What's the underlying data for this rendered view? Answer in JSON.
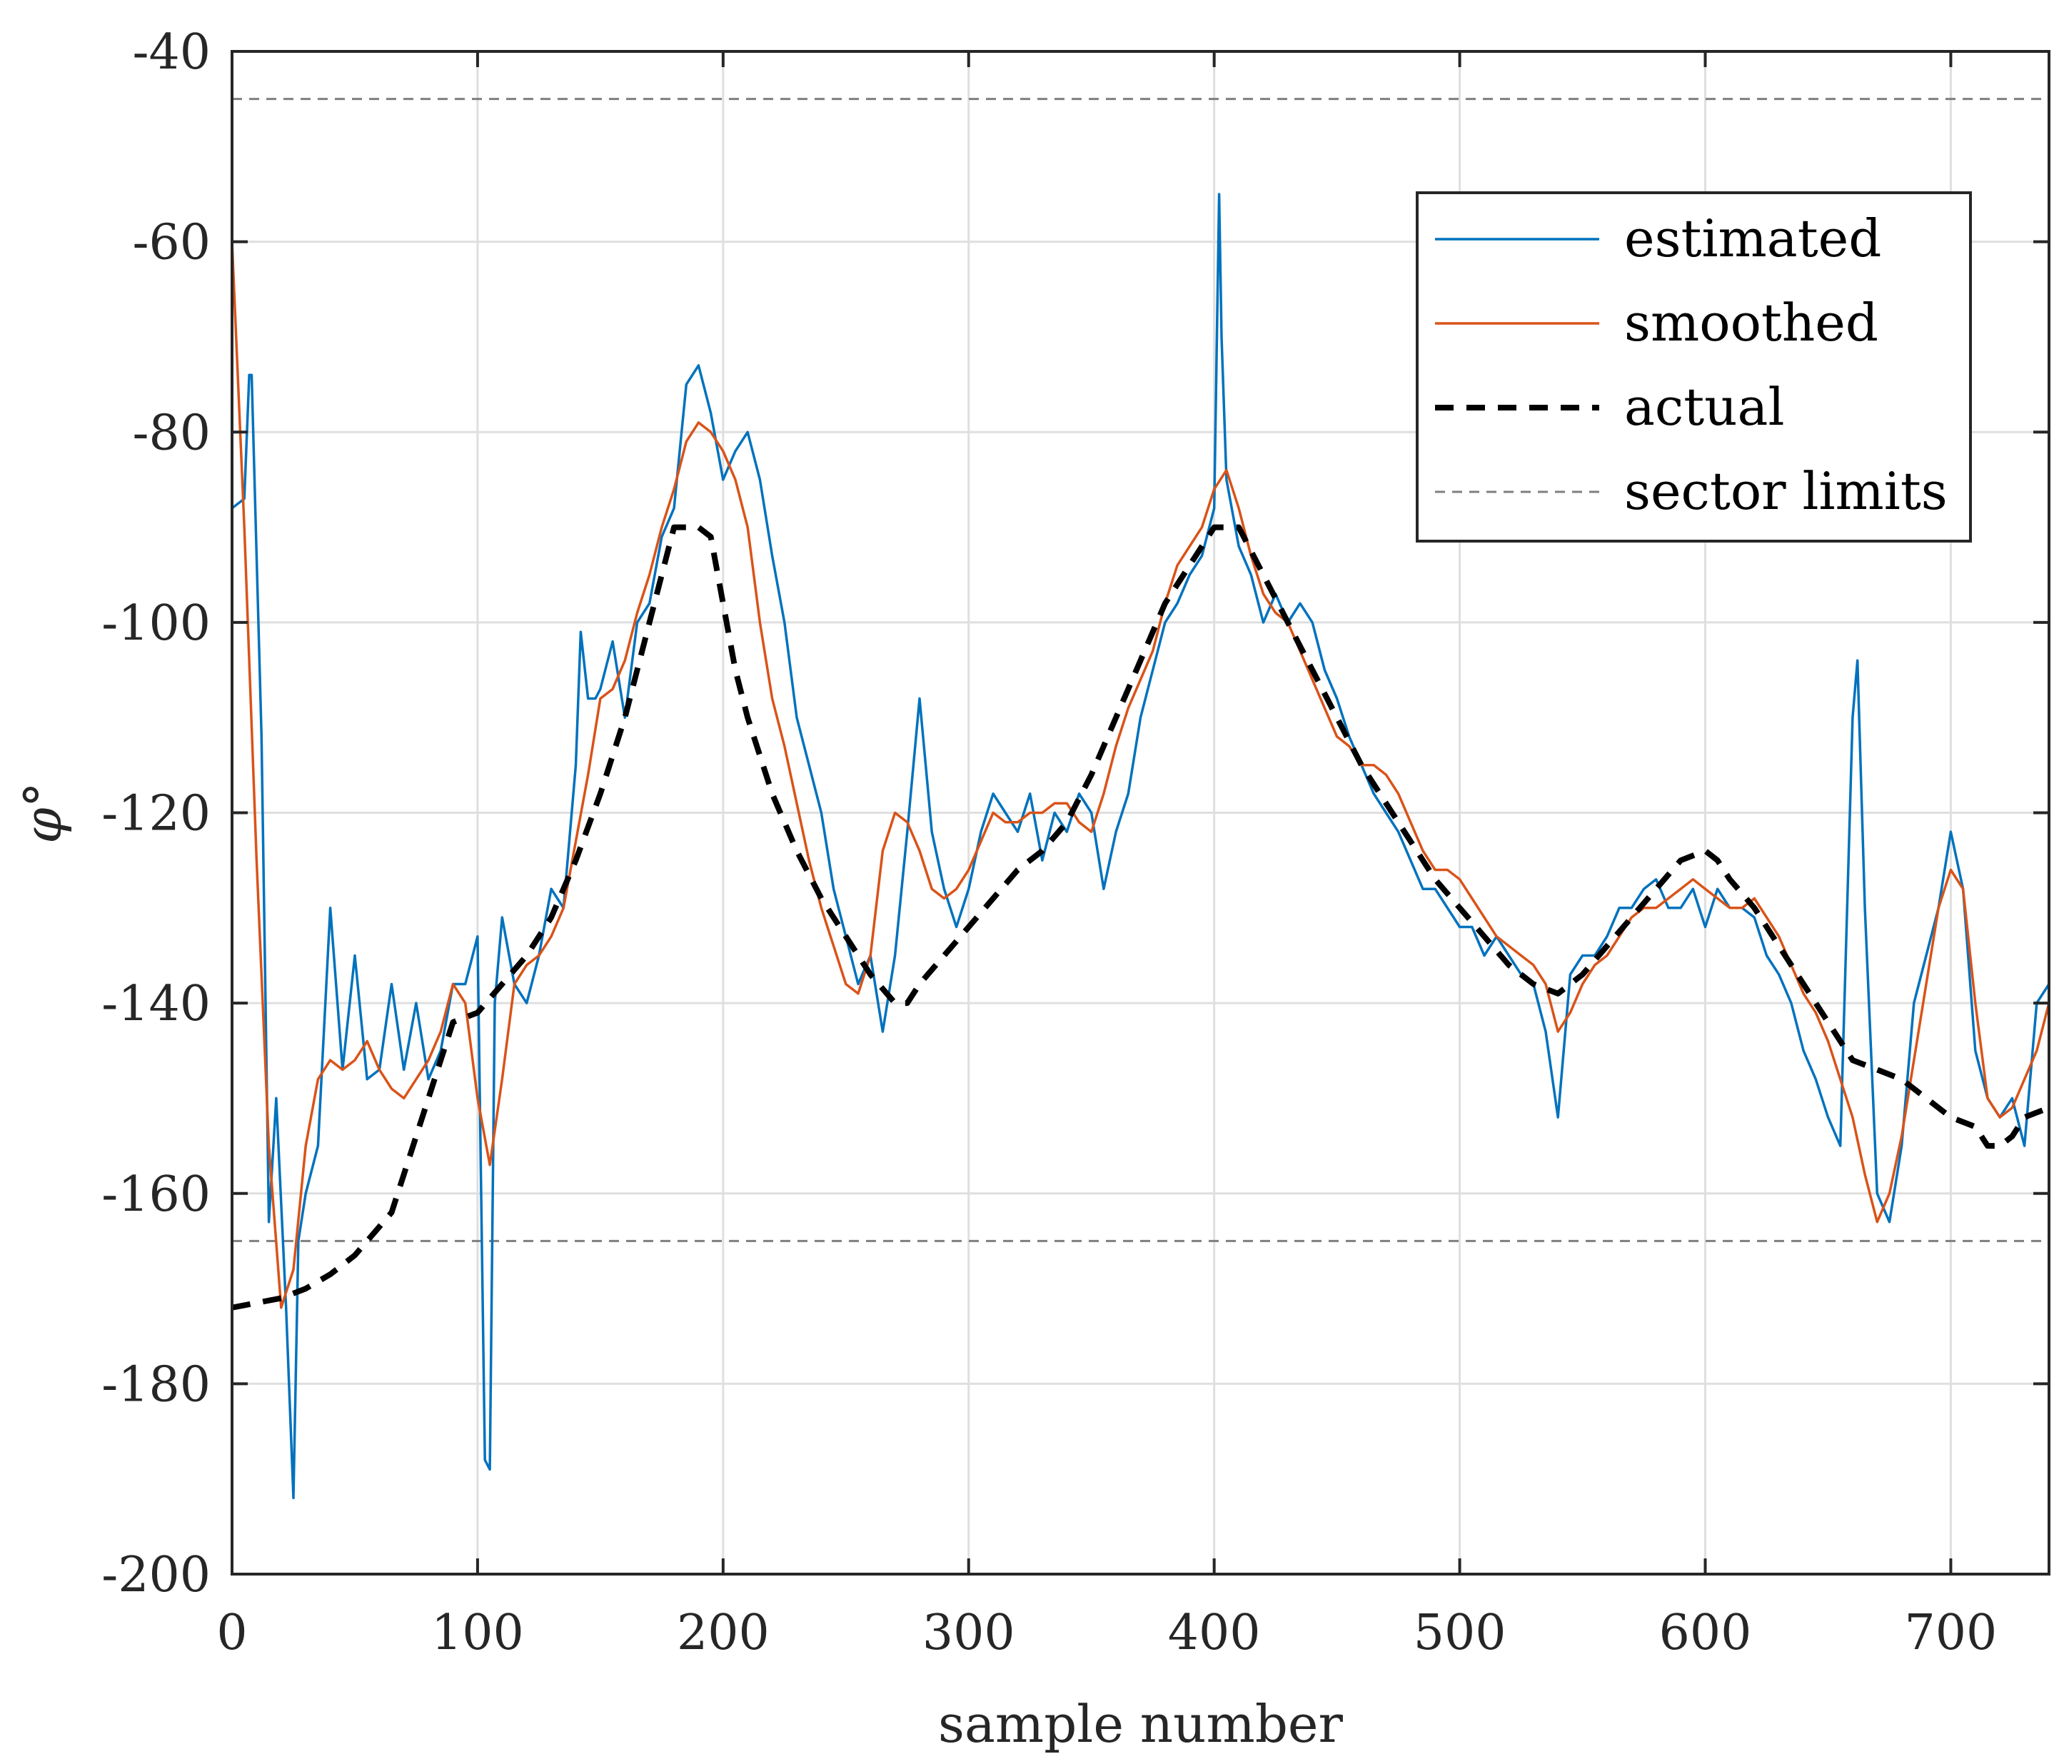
{
  "chart_data": {
    "type": "line",
    "title": "",
    "xlabel": "sample number",
    "ylabel": "φ°",
    "xlim": [
      0,
      740
    ],
    "ylim": [
      -200,
      -40
    ],
    "xticks": [
      0,
      100,
      200,
      300,
      400,
      500,
      600,
      700
    ],
    "yticks": [
      -40,
      -60,
      -80,
      -100,
      -120,
      -140,
      -160,
      -180,
      -200
    ],
    "grid": true,
    "legend_position": "top-right",
    "reference_lines": {
      "name": "sector limits",
      "y": [
        -45,
        -165
      ],
      "color": "#7f7f7f",
      "style": "dashed"
    },
    "series": [
      {
        "name": "estimated",
        "color": "#0072BD",
        "style": "solid",
        "x": [
          0,
          5,
          7,
          8,
          12,
          15,
          18,
          22,
          25,
          27,
          30,
          35,
          40,
          45,
          50,
          55,
          60,
          65,
          70,
          75,
          80,
          85,
          90,
          95,
          100,
          103,
          105,
          107,
          110,
          115,
          120,
          125,
          130,
          135,
          140,
          142,
          145,
          148,
          150,
          155,
          160,
          165,
          170,
          175,
          180,
          185,
          190,
          195,
          200,
          205,
          210,
          215,
          220,
          225,
          230,
          235,
          240,
          245,
          250,
          255,
          260,
          265,
          270,
          275,
          280,
          285,
          290,
          295,
          300,
          305,
          310,
          315,
          320,
          325,
          330,
          335,
          340,
          345,
          350,
          355,
          360,
          365,
          370,
          375,
          380,
          385,
          390,
          395,
          400,
          402,
          403,
          405,
          410,
          415,
          420,
          425,
          430,
          435,
          440,
          445,
          450,
          455,
          460,
          465,
          470,
          475,
          480,
          485,
          490,
          495,
          500,
          505,
          510,
          515,
          520,
          525,
          530,
          535,
          540,
          545,
          550,
          555,
          560,
          565,
          570,
          575,
          580,
          585,
          590,
          595,
          600,
          605,
          610,
          615,
          620,
          625,
          630,
          635,
          640,
          645,
          650,
          655,
          660,
          662,
          665,
          670,
          675,
          680,
          685,
          690,
          695,
          700,
          705,
          710,
          715,
          720,
          725,
          730,
          735,
          740
        ],
        "y": [
          -88,
          -87,
          -74,
          -74,
          -112,
          -163,
          -150,
          -172,
          -192,
          -165,
          -160,
          -155,
          -130,
          -147,
          -135,
          -148,
          -147,
          -138,
          -147,
          -140,
          -148,
          -145,
          -138,
          -138,
          -133,
          -188,
          -189,
          -140,
          -131,
          -138,
          -140,
          -135,
          -128,
          -130,
          -115,
          -101,
          -108,
          -108,
          -107,
          -102,
          -110,
          -100,
          -98,
          -91,
          -88,
          -75,
          -73,
          -78,
          -85,
          -82,
          -80,
          -85,
          -93,
          -100,
          -110,
          -115,
          -120,
          -128,
          -133,
          -138,
          -135,
          -143,
          -135,
          -122,
          -108,
          -122,
          -128,
          -132,
          -128,
          -122,
          -118,
          -120,
          -122,
          -118,
          -125,
          -120,
          -122,
          -118,
          -120,
          -128,
          -122,
          -118,
          -110,
          -105,
          -100,
          -98,
          -95,
          -93,
          -88,
          -55,
          -70,
          -85,
          -92,
          -95,
          -100,
          -97,
          -100,
          -98,
          -100,
          -105,
          -108,
          -112,
          -115,
          -118,
          -120,
          -122,
          -125,
          -128,
          -128,
          -130,
          -132,
          -132,
          -135,
          -133,
          -135,
          -137,
          -138,
          -143,
          -152,
          -137,
          -135,
          -135,
          -133,
          -130,
          -130,
          -128,
          -127,
          -130,
          -130,
          -128,
          -132,
          -128,
          -130,
          -130,
          -131,
          -135,
          -137,
          -140,
          -145,
          -148,
          -152,
          -155,
          -110,
          -104,
          -130,
          -160,
          -163,
          -155,
          -140,
          -135,
          -130,
          -122,
          -128,
          -145,
          -150,
          -152,
          -150,
          -155,
          -140,
          -138
        ]
      },
      {
        "name": "smoothed",
        "color": "#D95319",
        "style": "solid",
        "x": [
          0,
          5,
          10,
          15,
          20,
          25,
          30,
          35,
          40,
          45,
          50,
          55,
          60,
          65,
          70,
          75,
          80,
          85,
          90,
          95,
          100,
          105,
          110,
          115,
          120,
          125,
          130,
          135,
          140,
          145,
          150,
          155,
          160,
          165,
          170,
          175,
          180,
          185,
          190,
          195,
          200,
          205,
          210,
          215,
          220,
          225,
          230,
          235,
          240,
          245,
          250,
          255,
          260,
          265,
          270,
          275,
          280,
          285,
          290,
          295,
          300,
          305,
          310,
          315,
          320,
          325,
          330,
          335,
          340,
          345,
          350,
          355,
          360,
          365,
          370,
          375,
          380,
          385,
          390,
          395,
          400,
          405,
          410,
          415,
          420,
          425,
          430,
          435,
          440,
          445,
          450,
          455,
          460,
          465,
          470,
          475,
          480,
          485,
          490,
          495,
          500,
          505,
          510,
          515,
          520,
          525,
          530,
          535,
          540,
          545,
          550,
          555,
          560,
          565,
          570,
          575,
          580,
          585,
          590,
          595,
          600,
          605,
          610,
          615,
          620,
          625,
          630,
          635,
          640,
          645,
          650,
          655,
          660,
          665,
          670,
          675,
          680,
          685,
          690,
          695,
          700,
          705,
          710,
          715,
          720,
          725,
          730,
          735,
          740
        ],
        "y": [
          -60,
          -90,
          -125,
          -155,
          -172,
          -168,
          -155,
          -148,
          -146,
          -147,
          -146,
          -144,
          -147,
          -149,
          -150,
          -148,
          -146,
          -143,
          -138,
          -140,
          -150,
          -157,
          -148,
          -138,
          -136,
          -135,
          -133,
          -130,
          -123,
          -116,
          -108,
          -107,
          -104,
          -99,
          -95,
          -90,
          -86,
          -81,
          -79,
          -80,
          -82,
          -85,
          -90,
          -100,
          -108,
          -113,
          -119,
          -125,
          -130,
          -134,
          -138,
          -139,
          -135,
          -124,
          -120,
          -121,
          -124,
          -128,
          -129,
          -128,
          -126,
          -123,
          -120,
          -121,
          -121,
          -120,
          -120,
          -119,
          -119,
          -121,
          -122,
          -118,
          -113,
          -109,
          -106,
          -103,
          -98,
          -94,
          -92,
          -90,
          -86,
          -84,
          -88,
          -93,
          -97,
          -99,
          -100,
          -103,
          -106,
          -109,
          -112,
          -113,
          -115,
          -115,
          -116,
          -118,
          -121,
          -124,
          -126,
          -126,
          -127,
          -129,
          -131,
          -133,
          -134,
          -135,
          -136,
          -138,
          -143,
          -141,
          -138,
          -136,
          -135,
          -133,
          -131,
          -130,
          -130,
          -129,
          -128,
          -127,
          -128,
          -129,
          -130,
          -130,
          -129,
          -131,
          -133,
          -136,
          -139,
          -141,
          -144,
          -148,
          -152,
          -158,
          -163,
          -160,
          -154,
          -146,
          -138,
          -130,
          -126,
          -128,
          -140,
          -150,
          -152,
          -151,
          -148,
          -145,
          -140
        ]
      },
      {
        "name": "actual",
        "color": "#000000",
        "style": "dashed",
        "x": [
          0,
          10,
          20,
          30,
          40,
          50,
          60,
          65,
          70,
          80,
          90,
          100,
          110,
          120,
          130,
          140,
          150,
          160,
          170,
          180,
          190,
          195,
          200,
          205,
          210,
          220,
          230,
          240,
          250,
          260,
          270,
          275,
          280,
          290,
          300,
          310,
          320,
          330,
          340,
          350,
          360,
          370,
          380,
          390,
          400,
          410,
          420,
          430,
          440,
          450,
          460,
          470,
          480,
          490,
          500,
          510,
          520,
          530,
          540,
          550,
          560,
          570,
          580,
          590,
          600,
          605,
          610,
          620,
          630,
          640,
          650,
          660,
          670,
          680,
          690,
          700,
          710,
          715,
          720,
          725,
          730,
          740
        ],
        "y": [
          -172,
          -171.5,
          -171,
          -170,
          -168.5,
          -166.5,
          -163.5,
          -162,
          -158,
          -150,
          -142,
          -141,
          -138,
          -135,
          -131,
          -125,
          -118,
          -110,
          -100,
          -90,
          -90,
          -91,
          -98,
          -105,
          -110,
          -118,
          -124,
          -129,
          -133,
          -137,
          -140,
          -140,
          -138,
          -135,
          -132,
          -129,
          -126,
          -124,
          -121,
          -116,
          -110,
          -104,
          -98,
          -94,
          -90,
          -90,
          -95,
          -100,
          -105,
          -110,
          -115,
          -119,
          -123,
          -127,
          -130,
          -133,
          -136,
          -138,
          -139,
          -137,
          -134,
          -131,
          -128,
          -125,
          -124,
          -125,
          -127,
          -130,
          -134,
          -138,
          -142,
          -146,
          -147,
          -148,
          -150,
          -152,
          -153,
          -155,
          -155,
          -154,
          -152,
          -151
        ]
      }
    ]
  }
}
